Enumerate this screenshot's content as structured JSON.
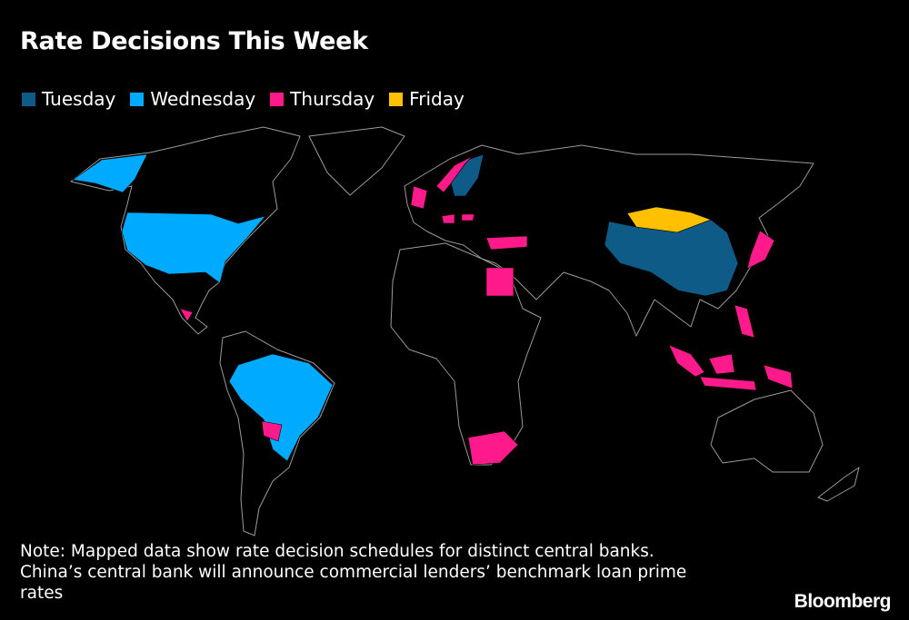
{
  "header": {
    "title": "Rate Decisions This Week"
  },
  "legend": [
    {
      "label": "Tuesday",
      "color": "#0f5b88"
    },
    {
      "label": "Wednesday",
      "color": "#00aaff"
    },
    {
      "label": "Thursday",
      "color": "#ff1a8c"
    },
    {
      "label": "Friday",
      "color": "#ffc000"
    }
  ],
  "note": [
    "Note: Mapped data show rate decision schedules for distinct central banks.",
    "China’s central bank will announce commercial lenders’ benchmark loan prime",
    "rates"
  ],
  "source": "Bloomberg"
}
